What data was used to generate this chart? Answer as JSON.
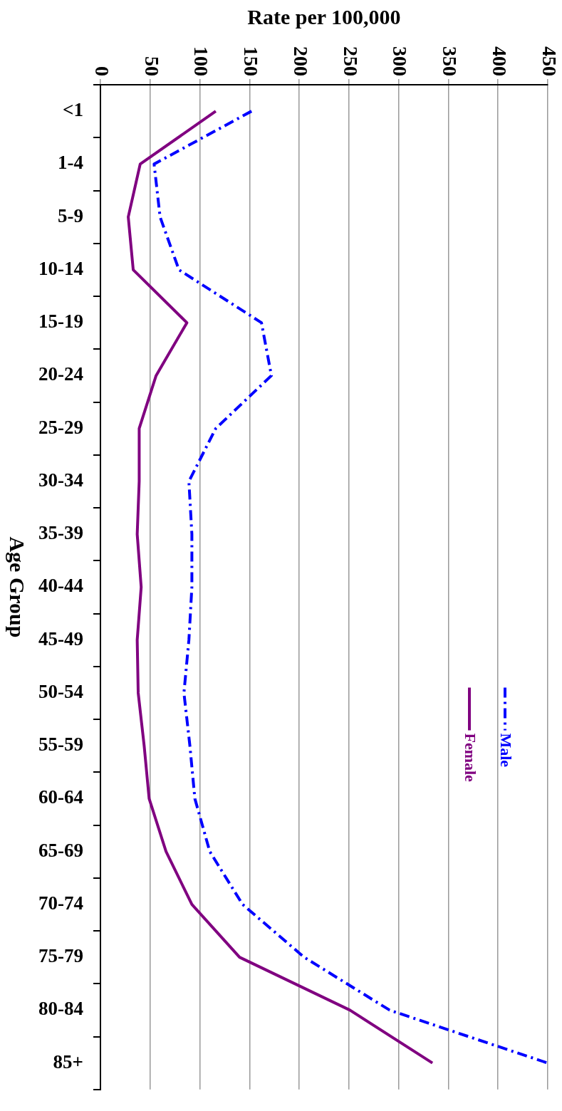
{
  "chart_data": {
    "type": "line",
    "orientation": "horizontal",
    "xlabel": "Rate per 100,000",
    "ylabel": "Age Group",
    "categories": [
      "<1",
      "1-4",
      "5-9",
      "10-14",
      "15-19",
      "20-24",
      "25-29",
      "30-34",
      "35-39",
      "40-44",
      "45-49",
      "50-54",
      "55-59",
      "60-64",
      "65-69",
      "70-74",
      "75-79",
      "80-84",
      "85+"
    ],
    "series": [
      {
        "name": "Male",
        "color": "#0000ff",
        "line_style": "dashed",
        "values": [
          152,
          54,
          60,
          79,
          162,
          172,
          116,
          89,
          92,
          92,
          89,
          84,
          90,
          95,
          110,
          143,
          205,
          291,
          450
        ]
      },
      {
        "name": "Female",
        "color": "#800080",
        "line_style": "solid",
        "values": [
          116,
          40,
          28,
          33,
          87,
          56,
          39,
          39,
          37,
          41,
          37,
          38,
          44,
          49,
          66,
          92,
          140,
          251,
          334
        ]
      }
    ],
    "xlim": [
      0,
      450
    ],
    "xticks": [
      0,
      50,
      100,
      150,
      200,
      250,
      300,
      350,
      400,
      450
    ],
    "grid": "x",
    "legend": "bottom right",
    "marker": "none"
  }
}
